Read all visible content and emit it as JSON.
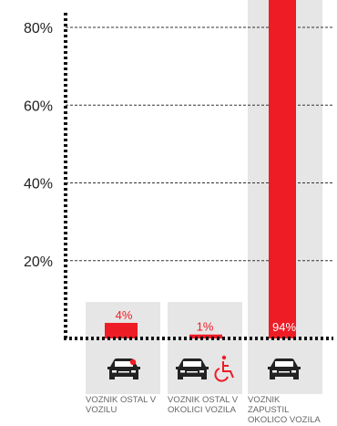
{
  "chart_data": {
    "type": "bar",
    "categories": [
      "VOZNIK OSTAL V VOZILU",
      "VOZNIK OSTAL V OKOLICI VOZILA",
      "VOZNIK ZAPUSTIL OKOLICO VOZILA"
    ],
    "values": [
      4,
      1,
      94
    ],
    "value_labels": [
      "4%",
      "1%",
      "94%"
    ],
    "y_ticks": [
      "20%",
      "40%",
      "60%",
      "80%"
    ],
    "y_tick_values": [
      20,
      40,
      60,
      80
    ],
    "ylim": [
      0,
      80
    ],
    "grid": true,
    "legend": "none",
    "icons": [
      "car-with-dot-icon",
      "car-with-wheelchair-icon",
      "car-icon"
    ],
    "colors": {
      "bar": "#ee1c25",
      "background_panel": "#e6e6e6",
      "axis": "#111111",
      "grid": "#333333"
    }
  }
}
